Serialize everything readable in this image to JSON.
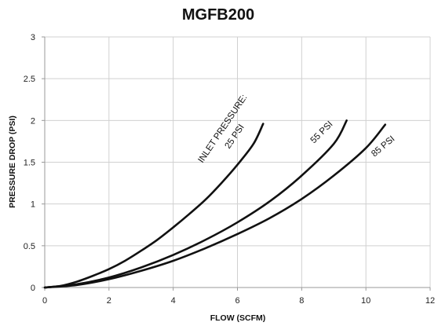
{
  "chart_data": {
    "type": "line",
    "title": "MGFB200",
    "xlabel": "FLOW (SCFM)",
    "ylabel": "PRESSURE DROP (PSI)",
    "xlim": [
      0,
      12
    ],
    "ylim": [
      0,
      3
    ],
    "xticks": [
      "0",
      "2",
      "4",
      "6",
      "8",
      "10",
      "12"
    ],
    "yticks": [
      "0",
      "0.5",
      "1",
      "1.5",
      "2",
      "2.5",
      "3"
    ],
    "grid": true,
    "series": [
      {
        "name": "25 PSI",
        "x": [
          0,
          0.5,
          1,
          1.5,
          2,
          2.5,
          3,
          3.5,
          4,
          4.5,
          5,
          5.5,
          6,
          6.5,
          6.8
        ],
        "y": [
          0,
          0.02,
          0.07,
          0.14,
          0.22,
          0.32,
          0.44,
          0.57,
          0.72,
          0.88,
          1.05,
          1.25,
          1.47,
          1.72,
          1.96
        ]
      },
      {
        "name": "55 PSI",
        "x": [
          0,
          1,
          2,
          3,
          4,
          5,
          6,
          7,
          8,
          9,
          9.4
        ],
        "y": [
          0,
          0.04,
          0.12,
          0.24,
          0.39,
          0.57,
          0.78,
          1.03,
          1.34,
          1.72,
          2.0
        ]
      },
      {
        "name": "85 PSI",
        "x": [
          0,
          1,
          2,
          3,
          4,
          5,
          6,
          7,
          8,
          9,
          10,
          10.6
        ],
        "y": [
          0,
          0.03,
          0.1,
          0.2,
          0.32,
          0.47,
          0.64,
          0.83,
          1.06,
          1.34,
          1.67,
          1.95
        ]
      }
    ],
    "annotations": [
      {
        "text": "INLET PRESSURE:",
        "series": "25 PSI"
      },
      {
        "text": "25 PSI",
        "series": "25 PSI"
      },
      {
        "text": "55 PSI",
        "series": "55 PSI"
      },
      {
        "text": "85 PSI",
        "series": "85 PSI"
      }
    ]
  }
}
